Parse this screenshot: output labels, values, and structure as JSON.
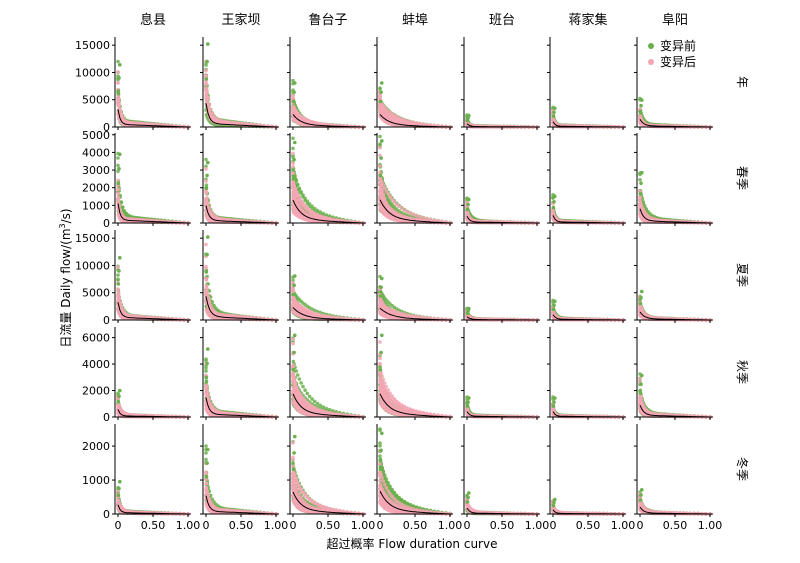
{
  "chart_data": {
    "type": "scatter",
    "stations": [
      "息县",
      "王家坝",
      "鲁台子",
      "蚌埠",
      "班台",
      "蒋家集",
      "阜阳"
    ],
    "seasons": [
      "年",
      "春季",
      "夏季",
      "秋季",
      "冬季"
    ],
    "xlabel": "超过概率 Flow duration curve",
    "ylabel_prefix": "日流量 Daily flow/(m",
    "ylabel_sup": "3",
    "ylabel_suffix": "/s)",
    "x_ticks": [
      "0",
      "0.50",
      "1.00"
    ],
    "xlim": [
      0,
      1
    ],
    "legend": {
      "position": "top-right",
      "items": [
        {
          "label": "变异前",
          "color": "#6ab04c"
        },
        {
          "label": "变异后",
          "color": "#f4a6b4"
        }
      ]
    },
    "median_color": "#000000",
    "rows": [
      {
        "season": "年",
        "ylim": [
          0,
          16500
        ],
        "y_ticks": [
          0,
          5000,
          10000,
          15000
        ],
        "peaks": [
          12000,
          16000,
          8500,
          8500,
          2200,
          3600,
          5200
        ]
      },
      {
        "season": "春季",
        "ylim": [
          0,
          5100
        ],
        "y_ticks": [
          0,
          1000,
          2000,
          3000,
          4000,
          5000
        ],
        "peaks": [
          4100,
          3600,
          4800,
          4900,
          1400,
          1600,
          3000
        ]
      },
      {
        "season": "夏季",
        "ylim": [
          0,
          16500
        ],
        "y_ticks": [
          0,
          5000,
          10000,
          15000
        ],
        "peaks": [
          12000,
          16000,
          8500,
          8000,
          2200,
          3600,
          5500
        ]
      },
      {
        "season": "秋季",
        "ylim": [
          0,
          6800
        ],
        "y_ticks": [
          0,
          2000,
          4000,
          6000
        ],
        "peaks": [
          2100,
          5400,
          6500,
          6500,
          1500,
          1500,
          3300
        ]
      },
      {
        "season": "冬季",
        "ylim": [
          0,
          2650
        ],
        "y_ticks": [
          0,
          1000,
          2000
        ],
        "peaks": [
          1000,
          2000,
          2400,
          2500,
          650,
          450,
          750
        ]
      }
    ]
  }
}
